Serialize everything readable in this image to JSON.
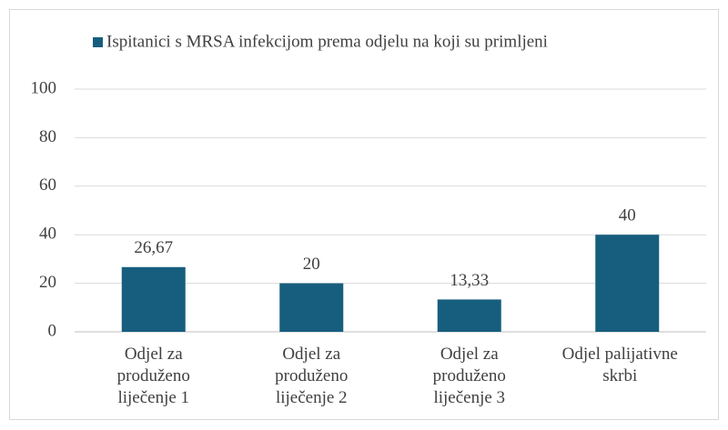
{
  "chart_data": {
    "type": "bar",
    "series": [
      {
        "name": "Ispitanici s MRSA infekcijom prema odjelu na koji su primljeni",
        "color": "#175e7e",
        "values": [
          26.67,
          20,
          13.33,
          40
        ],
        "value_labels": [
          "26,67",
          "20",
          "13,33",
          "40"
        ]
      }
    ],
    "categories": [
      "Odjel za produženo liječenje 1",
      "Odjel za produženo liječenje 2",
      "Odjel za produženo liječenje 3",
      "Odjel palijativne skrbi"
    ],
    "ylim": [
      0,
      100
    ],
    "yticks": [
      0,
      20,
      40,
      60,
      80,
      100
    ],
    "grid": true,
    "legend": "top"
  }
}
